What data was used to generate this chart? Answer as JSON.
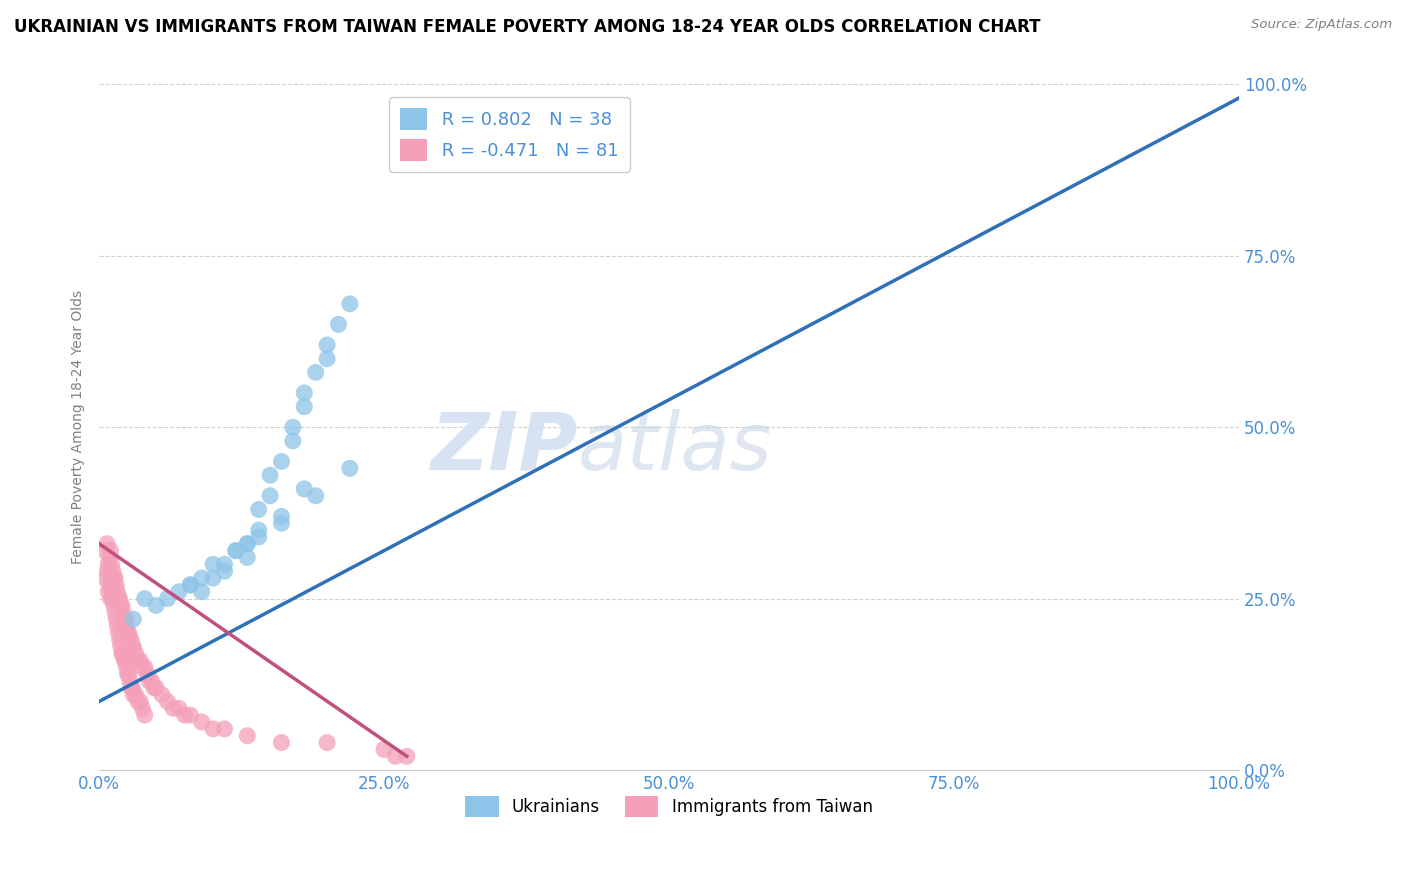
{
  "title": "UKRAINIAN VS IMMIGRANTS FROM TAIWAN FEMALE POVERTY AMONG 18-24 YEAR OLDS CORRELATION CHART",
  "source": "Source: ZipAtlas.com",
  "ylabel": "Female Poverty Among 18-24 Year Olds",
  "watermark_zip": "ZIP",
  "watermark_atlas": "atlas",
  "blue_label": "Ukrainians",
  "pink_label": "Immigrants from Taiwan",
  "blue_R": 0.802,
  "blue_N": 38,
  "pink_R": -0.471,
  "pink_N": 81,
  "blue_color": "#8ec4e8",
  "pink_color": "#f4a0b8",
  "blue_line_color": "#3070b8",
  "pink_line_color": "#c05080",
  "tick_color": "#4a90d9",
  "title_fontsize": 12,
  "axis_label_fontsize": 10,
  "tick_fontsize": 12,
  "background_color": "#ffffff",
  "blue_points_x": [
    0.04,
    0.08,
    0.1,
    0.1,
    0.12,
    0.13,
    0.14,
    0.14,
    0.15,
    0.15,
    0.16,
    0.17,
    0.17,
    0.18,
    0.18,
    0.19,
    0.2,
    0.2,
    0.21,
    0.22,
    0.03,
    0.05,
    0.06,
    0.07,
    0.08,
    0.09,
    0.11,
    0.12,
    0.13,
    0.16,
    0.19,
    0.22,
    0.09,
    0.11,
    0.13,
    0.14,
    0.16,
    0.18
  ],
  "blue_points_y": [
    0.25,
    0.27,
    0.28,
    0.3,
    0.32,
    0.33,
    0.35,
    0.38,
    0.4,
    0.43,
    0.45,
    0.48,
    0.5,
    0.53,
    0.55,
    0.58,
    0.6,
    0.62,
    0.65,
    0.68,
    0.22,
    0.24,
    0.25,
    0.26,
    0.27,
    0.28,
    0.3,
    0.32,
    0.33,
    0.36,
    0.4,
    0.44,
    0.26,
    0.29,
    0.31,
    0.34,
    0.37,
    0.41
  ],
  "pink_points_x": [
    0.005,
    0.005,
    0.007,
    0.007,
    0.008,
    0.008,
    0.009,
    0.009,
    0.01,
    0.01,
    0.01,
    0.011,
    0.011,
    0.012,
    0.012,
    0.013,
    0.013,
    0.014,
    0.014,
    0.015,
    0.015,
    0.016,
    0.016,
    0.017,
    0.017,
    0.018,
    0.018,
    0.019,
    0.019,
    0.02,
    0.02,
    0.021,
    0.021,
    0.022,
    0.022,
    0.023,
    0.023,
    0.024,
    0.024,
    0.025,
    0.025,
    0.026,
    0.026,
    0.027,
    0.027,
    0.028,
    0.028,
    0.029,
    0.029,
    0.03,
    0.03,
    0.032,
    0.032,
    0.034,
    0.034,
    0.036,
    0.036,
    0.038,
    0.038,
    0.04,
    0.04,
    0.042,
    0.044,
    0.046,
    0.048,
    0.05,
    0.055,
    0.06,
    0.065,
    0.07,
    0.075,
    0.08,
    0.09,
    0.1,
    0.11,
    0.13,
    0.16,
    0.2,
    0.25,
    0.26,
    0.27
  ],
  "pink_points_y": [
    0.32,
    0.28,
    0.33,
    0.29,
    0.3,
    0.26,
    0.31,
    0.27,
    0.32,
    0.28,
    0.25,
    0.3,
    0.26,
    0.29,
    0.25,
    0.28,
    0.24,
    0.28,
    0.23,
    0.27,
    0.22,
    0.26,
    0.21,
    0.25,
    0.2,
    0.25,
    0.19,
    0.24,
    0.18,
    0.24,
    0.17,
    0.23,
    0.17,
    0.22,
    0.16,
    0.22,
    0.16,
    0.21,
    0.15,
    0.2,
    0.14,
    0.2,
    0.14,
    0.19,
    0.13,
    0.19,
    0.12,
    0.18,
    0.12,
    0.18,
    0.11,
    0.17,
    0.11,
    0.16,
    0.1,
    0.16,
    0.1,
    0.15,
    0.09,
    0.15,
    0.08,
    0.14,
    0.13,
    0.13,
    0.12,
    0.12,
    0.11,
    0.1,
    0.09,
    0.09,
    0.08,
    0.08,
    0.07,
    0.06,
    0.06,
    0.05,
    0.04,
    0.04,
    0.03,
    0.02,
    0.02
  ],
  "blue_line_x": [
    0.0,
    1.0
  ],
  "blue_line_y": [
    0.1,
    0.98
  ],
  "pink_line_x": [
    0.0,
    0.27
  ],
  "pink_line_y": [
    0.33,
    0.02
  ],
  "xlim": [
    0.0,
    1.0
  ],
  "ylim": [
    0.0,
    1.0
  ],
  "xticks": [
    0.0,
    0.25,
    0.5,
    0.75,
    1.0
  ],
  "xtick_labels": [
    "0.0%",
    "25.0%",
    "50.0%",
    "75.0%",
    "100.0%"
  ],
  "yticks": [
    0.0,
    0.25,
    0.5,
    0.75,
    1.0
  ],
  "ytick_labels": [
    "0.0%",
    "25.0%",
    "50.0%",
    "75.0%",
    "100.0%"
  ]
}
